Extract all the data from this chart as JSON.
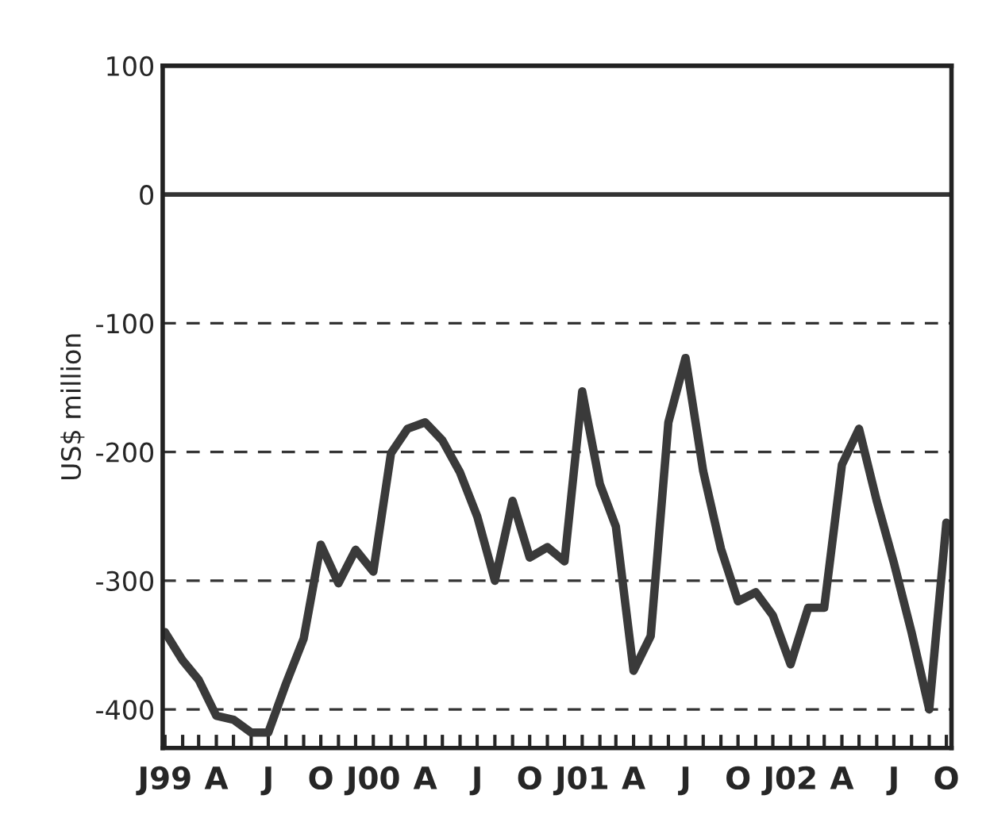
{
  "chart_data": {
    "type": "line",
    "ylabel": "US$ million",
    "x": [
      "1999-01",
      "1999-02",
      "1999-03",
      "1999-04",
      "1999-05",
      "1999-06",
      "1999-07",
      "1999-08",
      "1999-09",
      "1999-10",
      "1999-11",
      "1999-12",
      "2000-01",
      "2000-02",
      "2000-03",
      "2000-04",
      "2000-05",
      "2000-06",
      "2000-07",
      "2000-08",
      "2000-09",
      "2000-10",
      "2000-11",
      "2000-12",
      "2001-01",
      "2001-02",
      "2001-03",
      "2001-04",
      "2001-05",
      "2001-06",
      "2001-07",
      "2001-08",
      "2001-09",
      "2001-10",
      "2001-11",
      "2001-12",
      "2002-01",
      "2002-02",
      "2002-03",
      "2002-04",
      "2002-05",
      "2002-06",
      "2002-07",
      "2002-08",
      "2002-09",
      "2002-10"
    ],
    "series": [
      {
        "color": "#3a3a3a",
        "values": [
          -340,
          -362,
          -377,
          -405,
          -408,
          -418,
          -418,
          -380,
          -345,
          -272,
          -302,
          -276,
          -293,
          -201,
          -182,
          -177,
          -191,
          -216,
          -250,
          -300,
          -238,
          -282,
          -274,
          -285,
          -153,
          -225,
          -258,
          -370,
          -343,
          -177,
          -127,
          -215,
          -275,
          -316,
          -309,
          -327,
          -365,
          -321,
          -321,
          -210,
          -182,
          -238,
          -286,
          -340,
          -400,
          -255
        ]
      }
    ],
    "xlim": [
      "1998-12-28",
      "2002-10-10"
    ],
    "ylim": [
      -430,
      100
    ],
    "yticks": [
      100,
      0,
      -100,
      -200,
      -300,
      -400
    ],
    "xticks": [
      {
        "value": "1999-01",
        "label": "J99"
      },
      {
        "value": "1999-02",
        "label": null
      },
      {
        "value": "1999-03",
        "label": null
      },
      {
        "value": "1999-04",
        "label": "A"
      },
      {
        "value": "1999-05",
        "label": null
      },
      {
        "value": "1999-06",
        "label": null
      },
      {
        "value": "1999-07",
        "label": "J"
      },
      {
        "value": "1999-08",
        "label": null
      },
      {
        "value": "1999-09",
        "label": null
      },
      {
        "value": "1999-10",
        "label": "O"
      },
      {
        "value": "1999-11",
        "label": null
      },
      {
        "value": "1999-12",
        "label": null
      },
      {
        "value": "2000-01",
        "label": "J00"
      },
      {
        "value": "2000-02",
        "label": null
      },
      {
        "value": "2000-03",
        "label": null
      },
      {
        "value": "2000-04",
        "label": "A"
      },
      {
        "value": "2000-05",
        "label": null
      },
      {
        "value": "2000-06",
        "label": null
      },
      {
        "value": "2000-07",
        "label": "J"
      },
      {
        "value": "2000-08",
        "label": null
      },
      {
        "value": "2000-09",
        "label": null
      },
      {
        "value": "2000-10",
        "label": "O"
      },
      {
        "value": "2000-11",
        "label": null
      },
      {
        "value": "2000-12",
        "label": null
      },
      {
        "value": "2001-01",
        "label": "J01"
      },
      {
        "value": "2001-02",
        "label": null
      },
      {
        "value": "2001-03",
        "label": null
      },
      {
        "value": "2001-04",
        "label": "A"
      },
      {
        "value": "2001-05",
        "label": null
      },
      {
        "value": "2001-06",
        "label": null
      },
      {
        "value": "2001-07",
        "label": "J"
      },
      {
        "value": "2001-08",
        "label": null
      },
      {
        "value": "2001-09",
        "label": null
      },
      {
        "value": "2001-10",
        "label": "O"
      },
      {
        "value": "2001-11",
        "label": null
      },
      {
        "value": "2001-12",
        "label": null
      },
      {
        "value": "2002-01",
        "label": "J02"
      },
      {
        "value": "2002-02",
        "label": null
      },
      {
        "value": "2002-03",
        "label": null
      },
      {
        "value": "2002-04",
        "label": "A"
      },
      {
        "value": "2002-05",
        "label": null
      },
      {
        "value": "2002-06",
        "label": null
      },
      {
        "value": "2002-07",
        "label": "J"
      },
      {
        "value": "2002-08",
        "label": null
      },
      {
        "value": "2002-09",
        "label": null
      },
      {
        "value": "2002-10",
        "label": "O"
      }
    ],
    "grid": "y",
    "ref_lines": [
      {
        "axis": "y",
        "value": 0,
        "color": "#333333",
        "line_style": "solid"
      }
    ],
    "line_style": "solid",
    "marker": "none",
    "legend": false
  }
}
